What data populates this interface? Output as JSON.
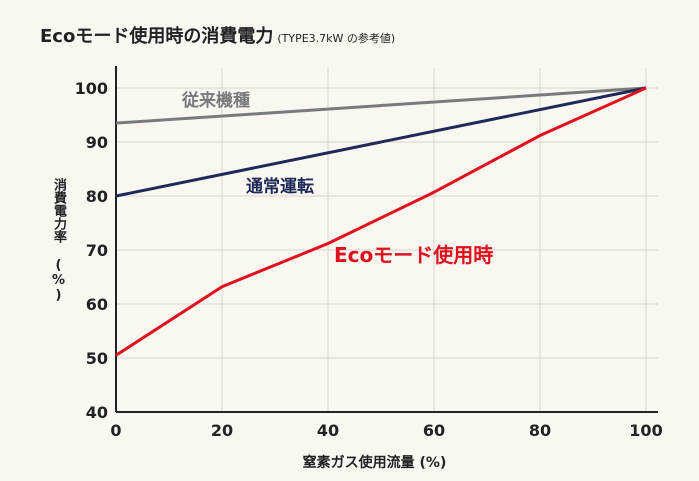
{
  "title": "Ecoモード使用時の消費電力",
  "subtitle": "(TYPE3.7kW の参考値)",
  "chart_data": {
    "type": "line",
    "xlabel": "窒素ガス使用流量 (%)",
    "ylabel": "消費電力率 (%)",
    "xlim": [
      0,
      100
    ],
    "ylim": [
      40,
      100
    ],
    "x_ticks": [
      0,
      20,
      40,
      60,
      80,
      100
    ],
    "y_ticks": [
      40,
      50,
      60,
      70,
      80,
      90,
      100
    ],
    "grid": true,
    "series": [
      {
        "name": "従来機種",
        "color": "#7a7a7a",
        "x": [
          0,
          100
        ],
        "y": [
          93.5,
          100
        ]
      },
      {
        "name": "通常運転",
        "color": "#1e2a5a",
        "x": [
          0,
          100
        ],
        "y": [
          80,
          100
        ]
      },
      {
        "name": "Ecoモード使用時",
        "color": "#e0101e",
        "x": [
          0,
          20,
          40,
          60,
          80,
          100
        ],
        "y": [
          50.5,
          63.2,
          71.2,
          80.7,
          91.2,
          100
        ]
      }
    ]
  }
}
